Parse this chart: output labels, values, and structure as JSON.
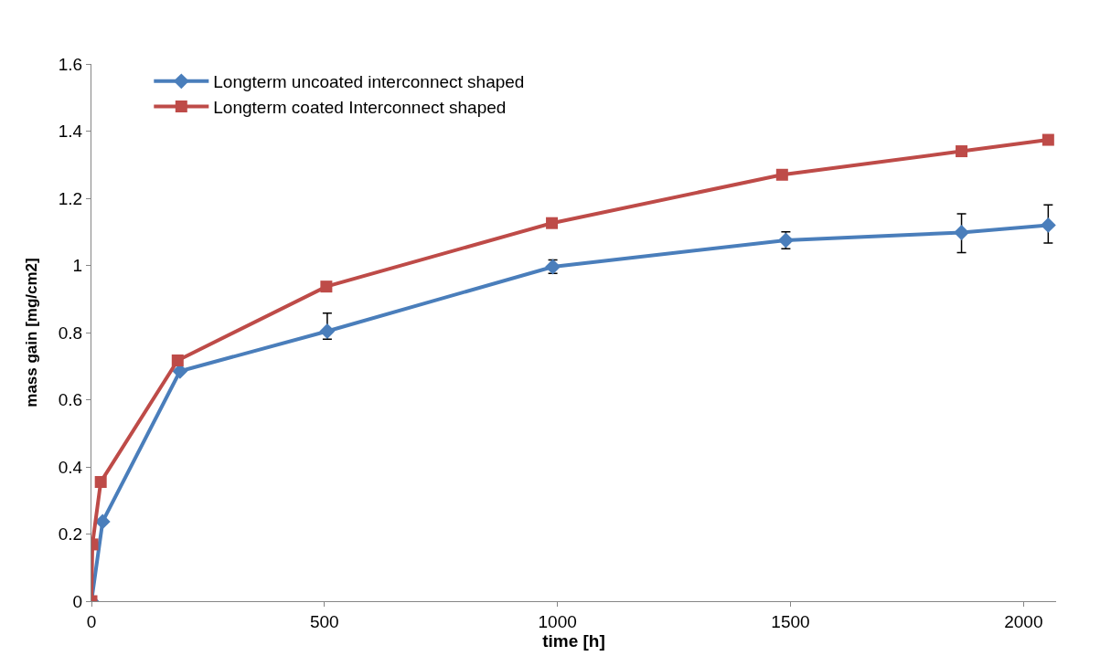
{
  "chart_data": {
    "type": "line",
    "xlabel": "time [h]",
    "ylabel": "mass gain [mg/cm2]",
    "xlim": [
      0,
      2070
    ],
    "xticks": [
      0,
      500,
      1000,
      1500,
      2000
    ],
    "ylim": [
      0,
      1.6
    ],
    "yticks": [
      0,
      0.2,
      0.4,
      0.6,
      0.8,
      1,
      1.2,
      1.4,
      1.6
    ],
    "legend": "top left",
    "line_style": "solid",
    "series": [
      {
        "name": "Longterm uncoated interconnect shaped",
        "color": "#4a7ebb",
        "marker": "diamond",
        "x": [
          0,
          24,
          190,
          506,
          990,
          1490,
          1867,
          2053
        ],
        "values": [
          0,
          0.237,
          0.685,
          0.804,
          0.996,
          1.075,
          1.098,
          1.12
        ],
        "errors": [
          null,
          null,
          null,
          [
            0.78,
            0.858
          ],
          [
            0.976,
            1.016
          ],
          [
            1.05,
            1.1
          ],
          [
            1.038,
            1.154
          ],
          [
            1.067,
            1.18
          ]
        ]
      },
      {
        "name": "Longterm coated Interconnect shaped",
        "color": "#be4b48",
        "marker": "square",
        "x": [
          0,
          2,
          20,
          185,
          504,
          988,
          1482,
          1867,
          2053
        ],
        "values": [
          0,
          0.169,
          0.355,
          0.717,
          0.937,
          1.126,
          1.27,
          1.34,
          1.374
        ]
      }
    ]
  }
}
